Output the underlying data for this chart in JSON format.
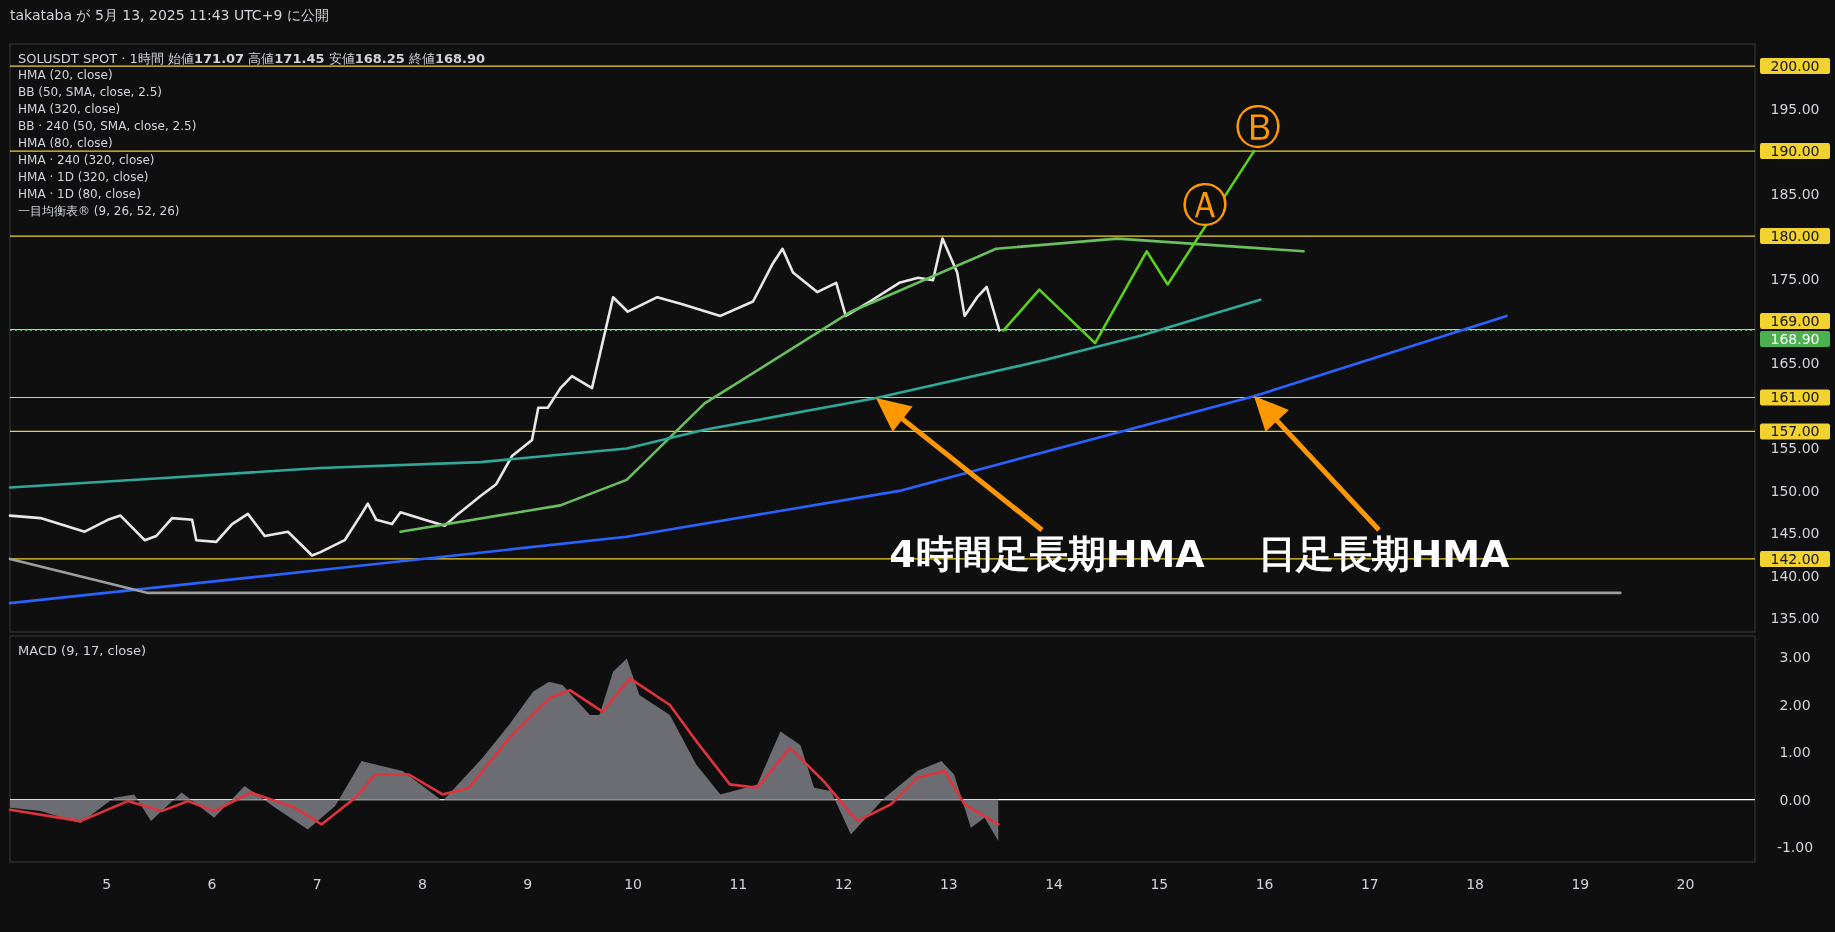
{
  "chart_data": [
    {
      "type": "line",
      "title": "SOLUSDT SPOT · 1時間  始値**171.07**  高値**171.45**  安値**168.25**  終値**168.90**",
      "annotations": [
        "takataba が 5月 13, 2025 11:43 UTC+9 に公開",
        "HMA (20, close)",
        "BB (50, SMA, close, 2.5)",
        "HMA (320, close)",
        "BB · 240 (50, SMA, close, 2.5)",
        "HMA (80, close)",
        "HMA · 240 (320, close)",
        "HMA · 1D (320, close)",
        "HMA · 1D (80, close)",
        "一目均衡表® (9, 26, 52, 26)",
        "4時間足長期HMA",
        "日足長期HMA",
        {
          "text": "Ⓐ",
          "x": 15.4,
          "y": 180.8
        },
        {
          "text": "Ⓑ",
          "x": 15.9,
          "y": 190.0
        }
      ],
      "xlim": [
        4.08,
        20.66
      ],
      "ylim": [
        133.4,
        202.6
      ],
      "yticks": [
        {
          "value": 135,
          "label": "135.00"
        },
        {
          "value": 140,
          "label": "140.00"
        },
        {
          "value": 145,
          "label": "145.00"
        },
        {
          "value": 150,
          "label": "150.00"
        },
        {
          "value": 155,
          "label": "155.00"
        },
        {
          "value": 165,
          "label": "165.00"
        },
        {
          "value": 175,
          "label": "175.00"
        },
        {
          "value": 185,
          "label": "185.00"
        },
        {
          "value": 195,
          "label": "195.00"
        }
      ],
      "tick_labels": "y",
      "grid": false,
      "ref_lines": [
        {
          "axis": "y",
          "value": 200,
          "label": "200.00",
          "color": "#f2d22e"
        },
        {
          "axis": "y",
          "value": 190,
          "label": "190.00",
          "color": "#f2d22e"
        },
        {
          "axis": "y",
          "value": 180,
          "label": "180.00",
          "color": "#f2d22e"
        },
        {
          "axis": "y",
          "value": 169,
          "label": "169.00",
          "color": "#f2d22e"
        },
        {
          "axis": "y",
          "value": 168.9,
          "label": "168.90",
          "color": "#4caf50",
          "line_style": "dotted"
        },
        {
          "axis": "y",
          "value": 161,
          "label": "161.00",
          "color": "#f2d22e"
        },
        {
          "axis": "y",
          "value": 157,
          "label": "157.00",
          "color": "#f2d22e"
        },
        {
          "axis": "y",
          "value": 142,
          "label": "142.00",
          "color": "#f2d22e"
        }
      ],
      "series": [
        {
          "color": "#e8e8e8",
          "x": [
            4.08,
            4.37,
            4.79,
            5.01,
            5.13,
            5.36,
            5.47,
            5.62,
            5.81,
            5.85,
            6.04,
            6.19,
            6.34,
            6.5,
            6.72,
            6.95,
            7.03,
            7.26,
            7.41,
            7.48,
            7.56,
            7.71,
            7.79,
            8.02,
            8.21,
            8.32,
            8.55,
            8.7,
            8.85,
            9.04,
            9.1,
            9.19,
            9.31,
            9.42,
            9.61,
            9.81,
            9.95,
            10.23,
            10.46,
            10.83,
            11.14,
            11.33,
            11.42,
            11.52,
            11.75,
            11.93,
            12.02,
            12.25,
            12.53,
            12.71,
            12.85,
            12.94,
            13.08,
            13.15,
            13.27,
            13.36,
            13.48
          ],
          "values": [
            147.1,
            146.8,
            145.2,
            146.6,
            147.1,
            144.2,
            144.7,
            146.8,
            146.6,
            144.2,
            144.0,
            146.1,
            147.3,
            144.7,
            145.2,
            142.4,
            142.8,
            144.2,
            147.1,
            148.5,
            146.6,
            146.1,
            147.5,
            146.6,
            145.9,
            147.1,
            149.4,
            150.8,
            154.1,
            156.0,
            159.8,
            159.8,
            162.1,
            163.5,
            162.1,
            172.8,
            171.1,
            172.8,
            172.0,
            170.6,
            172.3,
            176.8,
            178.5,
            175.7,
            173.4,
            174.5,
            170.6,
            172.3,
            174.5,
            175.1,
            174.8,
            179.7,
            175.7,
            170.6,
            172.8,
            174.0,
            168.9
          ]
        },
        {
          "color": "#6abf5e",
          "x": [
            7.79,
            9.31,
            9.94,
            10.68,
            12.07,
            13.45,
            14.6,
            16.37
          ],
          "values": [
            145.2,
            148.3,
            151.3,
            160.3,
            171.1,
            178.5,
            179.7,
            178.2
          ]
        },
        {
          "color": "#2fa89a",
          "x": [
            4.08,
            5.51,
            7.03,
            8.55,
            9.94,
            10.68,
            12.3,
            13.91,
            14.83,
            15.96
          ],
          "values": [
            150.4,
            151.5,
            152.7,
            153.4,
            155.0,
            157.2,
            160.9,
            165.4,
            168.3,
            172.5
          ]
        },
        {
          "color": "#2962ff",
          "x": [
            4.08,
            7.03,
            9.94,
            12.53,
            13.91,
            15.89,
            18.3
          ],
          "values": [
            136.8,
            140.7,
            144.6,
            150.0,
            154.6,
            161.1,
            170.6
          ]
        },
        {
          "color": "#9e9e9e",
          "x": [
            4.08,
            5.39,
            19.38
          ],
          "values": [
            142.0,
            138.0,
            138.0
          ]
        },
        {
          "color": "#5ad11a",
          "x": [
            13.52,
            13.86,
            14.39,
            14.88,
            15.08,
            15.9
          ],
          "values": [
            168.9,
            173.7,
            167.4,
            178.2,
            174.3,
            190.0
          ]
        }
      ]
    },
    {
      "type": "area",
      "title": "MACD (9, 17, close)",
      "xlim": [
        4.08,
        20.66
      ],
      "ylim": [
        -1.31,
        3.44
      ],
      "xticks": [
        5,
        6,
        7,
        8,
        9,
        10,
        11,
        12,
        13,
        14,
        15,
        16,
        17,
        18,
        19,
        20
      ],
      "yticks": [
        {
          "value": 3,
          "label": "3.00"
        },
        {
          "value": 2,
          "label": "2.00"
        },
        {
          "value": 1,
          "label": "1.00"
        },
        {
          "value": 0,
          "label": "0.00"
        },
        {
          "value": -1,
          "label": "-1.00"
        }
      ],
      "grid": false,
      "ref_lines": [
        {
          "axis": "y",
          "value": 0,
          "color": "#ffffff"
        }
      ],
      "series": [
        {
          "color": "#6b6d73",
          "x": [
            4.08,
            4.37,
            4.75,
            5.07,
            5.26,
            5.42,
            5.71,
            6.02,
            6.31,
            6.6,
            6.91,
            7.17,
            7.42,
            7.81,
            8.19,
            8.57,
            8.82,
            9.05,
            9.2,
            9.33,
            9.59,
            9.68,
            9.81,
            9.94,
            10.06,
            10.35,
            10.6,
            10.83,
            11.18,
            11.4,
            11.59,
            11.72,
            11.88,
            12.07,
            12.39,
            12.7,
            12.93,
            13.05,
            13.21,
            13.34,
            13.47
          ],
          "values": [
            -0.17,
            -0.24,
            -0.49,
            0.04,
            0.11,
            -0.45,
            0.15,
            -0.38,
            0.29,
            -0.17,
            -0.63,
            -0.13,
            0.81,
            0.6,
            -0.03,
            0.88,
            1.57,
            2.27,
            2.48,
            2.41,
            1.78,
            1.78,
            2.69,
            2.97,
            2.2,
            1.78,
            0.74,
            0.11,
            0.32,
            1.43,
            1.15,
            0.25,
            0.18,
            -0.73,
            0.04,
            0.6,
            0.81,
            0.53,
            -0.59,
            -0.38,
            -0.87
          ]
        },
        {
          "type": "line",
          "color": "#e0343d",
          "x": [
            4.08,
            4.75,
            5.2,
            5.52,
            5.77,
            6.02,
            6.37,
            6.79,
            7.04,
            7.36,
            7.55,
            7.87,
            8.19,
            8.44,
            8.82,
            9.2,
            9.4,
            9.71,
            9.97,
            10.35,
            10.6,
            10.92,
            11.18,
            11.49,
            11.81,
            12.13,
            12.45,
            12.7,
            12.96,
            13.15,
            13.47
          ],
          "values": [
            -0.21,
            -0.45,
            -0.03,
            -0.24,
            -0.03,
            -0.24,
            0.15,
            -0.17,
            -0.52,
            0.04,
            0.53,
            0.53,
            0.11,
            0.25,
            1.29,
            2.13,
            2.3,
            1.85,
            2.55,
            1.99,
            1.23,
            0.32,
            0.25,
            1.09,
            0.39,
            -0.45,
            -0.1,
            0.46,
            0.6,
            -0.1,
            -0.52
          ]
        }
      ]
    }
  ]
}
